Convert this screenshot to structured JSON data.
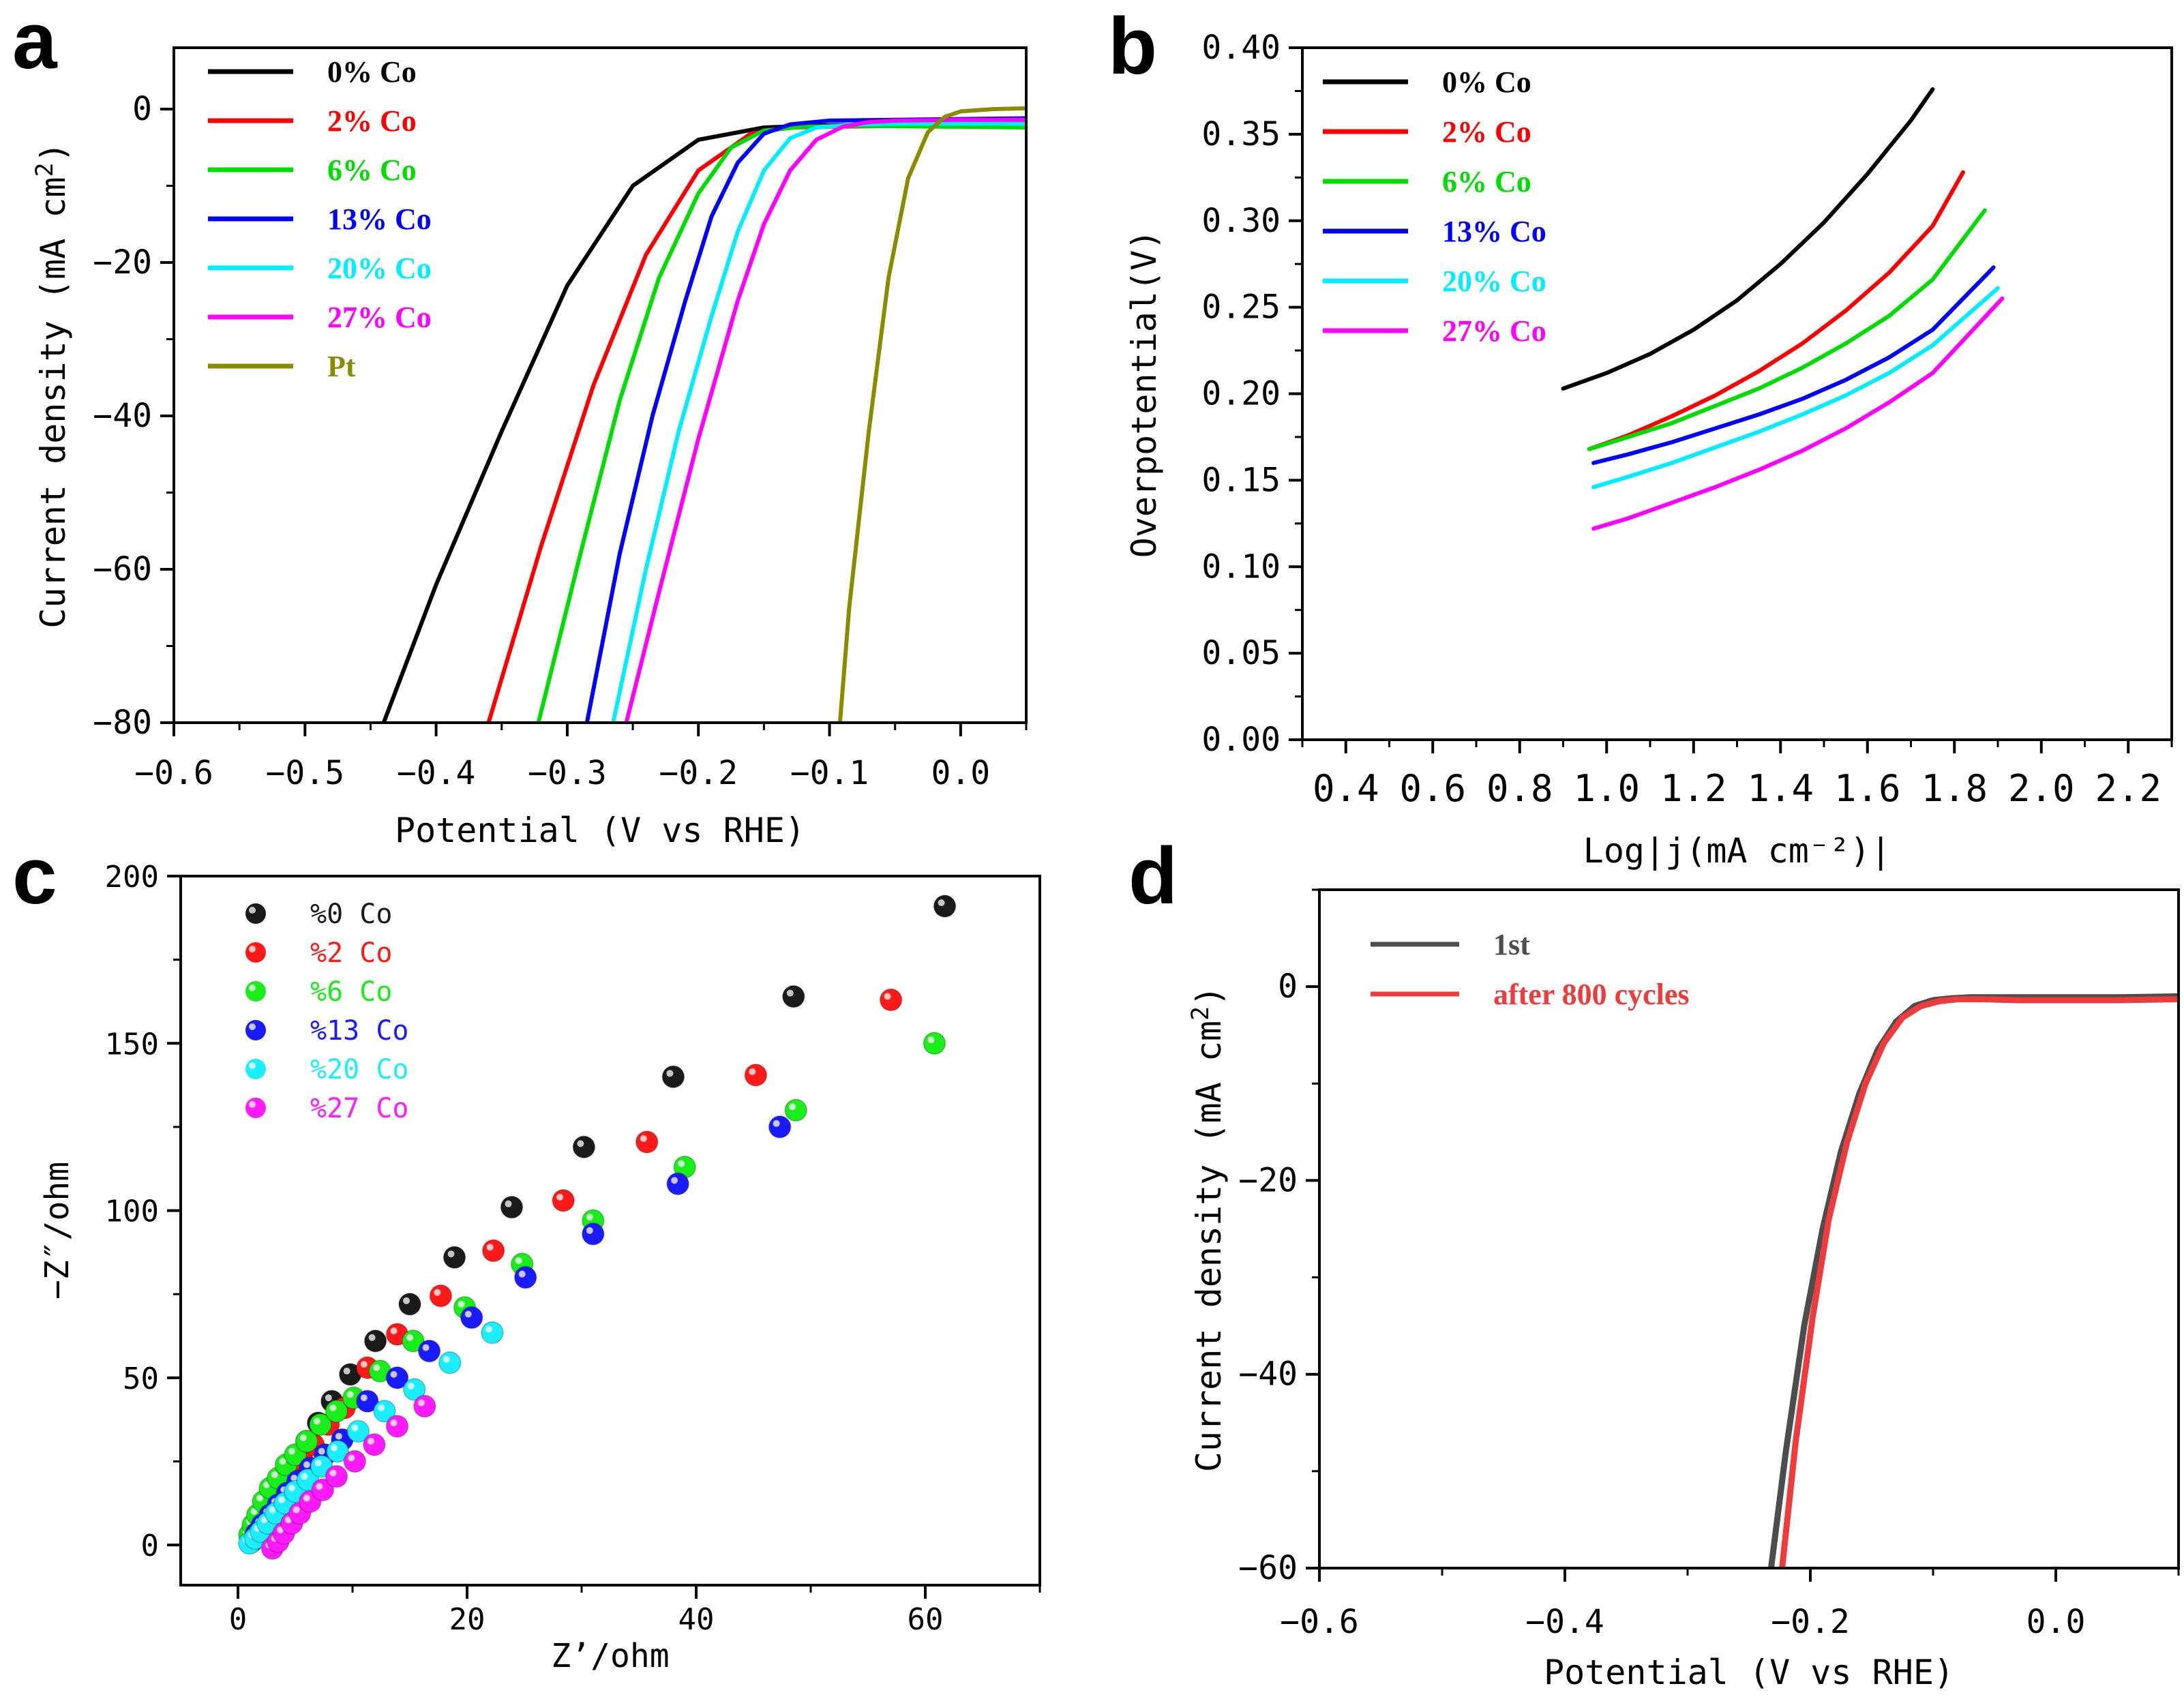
{
  "chart_data": [
    {
      "panel": "a",
      "type": "line",
      "xlabel": "Potential (V vs RHE)",
      "ylabel": "Current density (mA cm2)",
      "ylabel_superscript": "2",
      "xlim": [
        -0.6,
        0.05
      ],
      "ylim": [
        -80,
        8
      ],
      "xticks": [
        -0.6,
        -0.5,
        -0.4,
        -0.3,
        -0.2,
        -0.1,
        0.0
      ],
      "xtick_labels": [
        "−0.6",
        "−0.5",
        "−0.4",
        "−0.3",
        "−0.2",
        "−0.1",
        "0.0"
      ],
      "yticks": [
        0,
        -20,
        -40,
        -60,
        -80
      ],
      "ytick_labels": [
        "0",
        "−20",
        "−40",
        "−60",
        "−80"
      ],
      "legend_position": "top-left",
      "series": [
        {
          "name": "0% Co",
          "color": "#000000",
          "x": [
            -0.44,
            -0.4,
            -0.35,
            -0.3,
            -0.25,
            -0.2,
            -0.15,
            -0.12,
            -0.1,
            -0.05,
            0.0,
            0.05
          ],
          "y": [
            -80,
            -62,
            -42,
            -23,
            -10,
            -4,
            -2.4,
            -2.2,
            -2.1,
            -2.0,
            -1.8,
            -1.6
          ]
        },
        {
          "name": "2% Co",
          "color": "#ff0000",
          "x": [
            -0.36,
            -0.32,
            -0.28,
            -0.24,
            -0.2,
            -0.16,
            -0.13,
            -0.1,
            -0.05,
            0.0,
            0.05
          ],
          "y": [
            -80,
            -57,
            -36,
            -19,
            -8,
            -3.2,
            -2.4,
            -2.3,
            -2.2,
            -2.2,
            -2.3
          ]
        },
        {
          "name": "6% Co",
          "color": "#00dd00",
          "x": [
            -0.322,
            -0.29,
            -0.26,
            -0.23,
            -0.2,
            -0.175,
            -0.15,
            -0.12,
            -0.08,
            0.0,
            0.05
          ],
          "y": [
            -80,
            -58,
            -38,
            -22,
            -11,
            -5,
            -2.8,
            -2.3,
            -2.2,
            -2.3,
            -2.4
          ]
        },
        {
          "name": "13% Co",
          "color": "#0000ff",
          "x": [
            -0.285,
            -0.26,
            -0.235,
            -0.21,
            -0.19,
            -0.17,
            -0.15,
            -0.13,
            -0.1,
            -0.05,
            0.0,
            0.05
          ],
          "y": [
            -80,
            -58,
            -40,
            -25,
            -14,
            -7,
            -3.2,
            -2.0,
            -1.5,
            -1.4,
            -1.3,
            -1.2
          ]
        },
        {
          "name": "20% Co",
          "color": "#00eeff",
          "x": [
            -0.265,
            -0.24,
            -0.215,
            -0.19,
            -0.17,
            -0.15,
            -0.13,
            -0.11,
            -0.08,
            -0.05,
            0.0,
            0.05
          ],
          "y": [
            -80,
            -60,
            -42,
            -27,
            -16,
            -8,
            -3.8,
            -2.4,
            -2.0,
            -1.9,
            -1.9,
            -1.9
          ]
        },
        {
          "name": "27% Co",
          "color": "#ff00ff",
          "x": [
            -0.255,
            -0.23,
            -0.2,
            -0.17,
            -0.15,
            -0.13,
            -0.11,
            -0.09,
            -0.07,
            -0.05,
            0.0,
            0.05
          ],
          "y": [
            -80,
            -63,
            -43,
            -25,
            -15,
            -8,
            -4,
            -2.3,
            -1.7,
            -1.5,
            -1.4,
            -1.4
          ]
        },
        {
          "name": "Pt",
          "color": "#8b8b00",
          "x": [
            -0.092,
            -0.085,
            -0.07,
            -0.055,
            -0.04,
            -0.025,
            -0.012,
            0.0,
            0.025,
            0.05
          ],
          "y": [
            -80,
            -65,
            -42,
            -22,
            -9,
            -3,
            -1,
            -0.3,
            0,
            0.1
          ]
        }
      ]
    },
    {
      "panel": "b",
      "type": "line",
      "xlabel": "Log|j(mA cm⁻²)|",
      "ylabel": "Overpotential(V)",
      "xlim": [
        0.3,
        2.3
      ],
      "ylim": [
        0.0,
        0.4
      ],
      "xticks": [
        0.4,
        0.6,
        0.8,
        1.0,
        1.2,
        1.4,
        1.6,
        1.8,
        2.0,
        2.2
      ],
      "xtick_labels": [
        "0.4",
        "0.6",
        "0.8",
        "1.0",
        "1.2",
        "1.4",
        "1.6",
        "1.8",
        "2.0",
        "2.2"
      ],
      "yticks": [
        0.0,
        0.05,
        0.1,
        0.15,
        0.2,
        0.25,
        0.3,
        0.35,
        0.4
      ],
      "ytick_labels": [
        "0.00",
        "0.05",
        "0.10",
        "0.15",
        "0.20",
        "0.25",
        "0.30",
        "0.35",
        "0.40"
      ],
      "legend_position": "top-left",
      "series": [
        {
          "name": "0% Co",
          "color": "#000000",
          "x": [
            0.9,
            1.0,
            1.1,
            1.2,
            1.3,
            1.4,
            1.5,
            1.6,
            1.7,
            1.75
          ],
          "y": [
            0.203,
            0.212,
            0.223,
            0.237,
            0.254,
            0.275,
            0.299,
            0.327,
            0.358,
            0.376
          ]
        },
        {
          "name": "2% Co",
          "color": "#ff0000",
          "x": [
            0.96,
            1.05,
            1.15,
            1.25,
            1.35,
            1.45,
            1.55,
            1.65,
            1.75,
            1.82
          ],
          "y": [
            0.168,
            0.176,
            0.187,
            0.199,
            0.213,
            0.229,
            0.248,
            0.27,
            0.297,
            0.328
          ]
        },
        {
          "name": "6% Co",
          "color": "#00dd00",
          "x": [
            0.96,
            1.05,
            1.15,
            1.25,
            1.35,
            1.45,
            1.55,
            1.65,
            1.75,
            1.87
          ],
          "y": [
            0.168,
            0.175,
            0.183,
            0.193,
            0.203,
            0.215,
            0.229,
            0.245,
            0.266,
            0.306
          ]
        },
        {
          "name": "13% Co",
          "color": "#0000ff",
          "x": [
            0.97,
            1.05,
            1.15,
            1.25,
            1.35,
            1.45,
            1.55,
            1.65,
            1.75,
            1.89
          ],
          "y": [
            0.16,
            0.165,
            0.172,
            0.18,
            0.188,
            0.197,
            0.208,
            0.221,
            0.237,
            0.273
          ]
        },
        {
          "name": "20% Co",
          "color": "#00eeff",
          "x": [
            0.97,
            1.05,
            1.15,
            1.25,
            1.35,
            1.45,
            1.55,
            1.65,
            1.75,
            1.9
          ],
          "y": [
            0.146,
            0.152,
            0.16,
            0.169,
            0.178,
            0.188,
            0.199,
            0.212,
            0.228,
            0.261
          ]
        },
        {
          "name": "27% Co",
          "color": "#ff00ff",
          "x": [
            0.97,
            1.05,
            1.15,
            1.25,
            1.35,
            1.45,
            1.55,
            1.65,
            1.75,
            1.91
          ],
          "y": [
            0.122,
            0.128,
            0.137,
            0.146,
            0.156,
            0.167,
            0.18,
            0.195,
            0.212,
            0.255
          ]
        }
      ]
    },
    {
      "panel": "c",
      "type": "scatter",
      "xlabel": "Z’/ohm",
      "ylabel": "−Z″/ohm",
      "xlim": [
        -5,
        70
      ],
      "ylim": [
        -12,
        200
      ],
      "xticks": [
        0,
        20,
        40,
        60
      ],
      "xtick_labels": [
        "0",
        "20",
        "40",
        "60"
      ],
      "yticks": [
        0,
        50,
        100,
        150,
        200
      ],
      "ytick_labels": [
        "0",
        "50",
        "100",
        "150",
        "200"
      ],
      "legend_position": "top-left",
      "series": [
        {
          "name": "%0  Co",
          "color": "#1a1a1a",
          "x": [
            1.2,
            1.5,
            1.9,
            2.4,
            3.0,
            3.6,
            4.3,
            5.1,
            6.0,
            7.0,
            8.2,
            9.8,
            12.0,
            15.0,
            18.9,
            23.9,
            30.2,
            38.0,
            48.5,
            61.7
          ],
          "y": [
            2,
            5,
            8,
            11,
            14.5,
            18,
            22,
            26.5,
            31,
            36.5,
            43,
            51,
            61,
            72,
            86,
            101,
            119,
            140,
            164,
            191
          ]
        },
        {
          "name": "%2  Co",
          "color": "#ff1a1a",
          "x": [
            1.2,
            1.5,
            1.9,
            2.5,
            3.1,
            3.8,
            4.6,
            5.6,
            6.6,
            7.9,
            9.3,
            11.3,
            13.9,
            17.7,
            22.3,
            28.4,
            35.7,
            45.2,
            57.0
          ],
          "y": [
            1.5,
            4,
            7,
            10,
            13.5,
            17,
            21,
            25.5,
            30,
            36,
            41,
            53,
            63,
            74.5,
            88,
            103,
            120.5,
            140.5,
            163
          ]
        },
        {
          "name": "%6  Co",
          "color": "#1aee1a",
          "x": [
            1.0,
            1.3,
            1.7,
            2.2,
            2.8,
            3.5,
            4.2,
            5.0,
            6.0,
            7.2,
            8.6,
            10.1,
            12.4,
            15.3,
            19.8,
            24.8,
            31.0,
            39.0,
            48.7,
            60.8
          ],
          "y": [
            3,
            6,
            9,
            13,
            17,
            20,
            24,
            27,
            31,
            36,
            40,
            44,
            52,
            61,
            71,
            84,
            97,
            113,
            130,
            150
          ]
        },
        {
          "name": "%13 Co",
          "color": "#1a1aff",
          "x": [
            1.2,
            1.6,
            2.1,
            2.8,
            3.5,
            4.3,
            5.2,
            6.3,
            7.6,
            9.1,
            11.3,
            13.9,
            16.7,
            20.4,
            25.1,
            31.0,
            38.4,
            47.3
          ],
          "y": [
            1,
            3.5,
            6,
            9,
            12,
            15.5,
            19,
            23,
            27,
            31.5,
            43,
            50,
            58,
            68,
            80,
            93,
            108,
            125
          ]
        },
        {
          "name": "%20 Co",
          "color": "#1aeeff",
          "x": [
            1.0,
            1.5,
            2.0,
            2.6,
            3.3,
            4.1,
            5.0,
            6.1,
            7.3,
            8.7,
            10.5,
            12.8,
            15.4,
            18.5,
            22.2
          ],
          "y": [
            0.5,
            2,
            4,
            6.5,
            9.5,
            12.5,
            16,
            19.5,
            23.5,
            28,
            34,
            40,
            46.5,
            54.5,
            63.5
          ]
        },
        {
          "name": "%27 Co",
          "color": "#ff1aff",
          "x": [
            3.0,
            3.5,
            4.0,
            4.7,
            5.4,
            6.3,
            7.4,
            8.6,
            10.2,
            11.9,
            13.9,
            16.3
          ],
          "y": [
            -1,
            1,
            3.5,
            6.5,
            9.5,
            13,
            16.5,
            20.5,
            25,
            30,
            35.5,
            41.5
          ]
        }
      ]
    },
    {
      "panel": "d",
      "type": "line",
      "xlabel": "Potential (V vs RHE)",
      "ylabel": "Current density (mA cm2)",
      "ylabel_superscript": "2",
      "xlim": [
        -0.6,
        0.1
      ],
      "ylim": [
        -60,
        10
      ],
      "xticks": [
        -0.6,
        -0.4,
        -0.2,
        0.0
      ],
      "xtick_labels": [
        "−0.6",
        "−0.4",
        "−0.2",
        "0.0"
      ],
      "yticks": [
        0,
        -20,
        -40,
        -60
      ],
      "ytick_labels": [
        "0",
        "−20",
        "−40",
        "−60"
      ],
      "legend_position": "top-left",
      "series": [
        {
          "name": "1st",
          "color": "#4d4d4d",
          "x": [
            -0.232,
            -0.22,
            -0.205,
            -0.19,
            -0.175,
            -0.16,
            -0.145,
            -0.13,
            -0.115,
            -0.1,
            -0.085,
            -0.07,
            -0.05,
            0.0,
            0.05,
            0.1
          ],
          "y": [
            -60,
            -48,
            -35,
            -25,
            -17,
            -11,
            -6.5,
            -3.6,
            -2.0,
            -1.4,
            -1.2,
            -1.1,
            -1.1,
            -1.1,
            -1.1,
            -1.0
          ]
        },
        {
          "name": "after 800 cycles",
          "color": "#ee3b3b",
          "x": [
            -0.223,
            -0.212,
            -0.198,
            -0.185,
            -0.17,
            -0.155,
            -0.14,
            -0.125,
            -0.11,
            -0.095,
            -0.08,
            -0.06,
            -0.03,
            0.0,
            0.05,
            0.1
          ],
          "y": [
            -60,
            -47,
            -34,
            -24,
            -16,
            -10,
            -5.8,
            -3.2,
            -2.0,
            -1.5,
            -1.3,
            -1.3,
            -1.4,
            -1.4,
            -1.4,
            -1.3
          ]
        }
      ]
    }
  ],
  "panel_letters": [
    "a",
    "b",
    "c",
    "d"
  ]
}
